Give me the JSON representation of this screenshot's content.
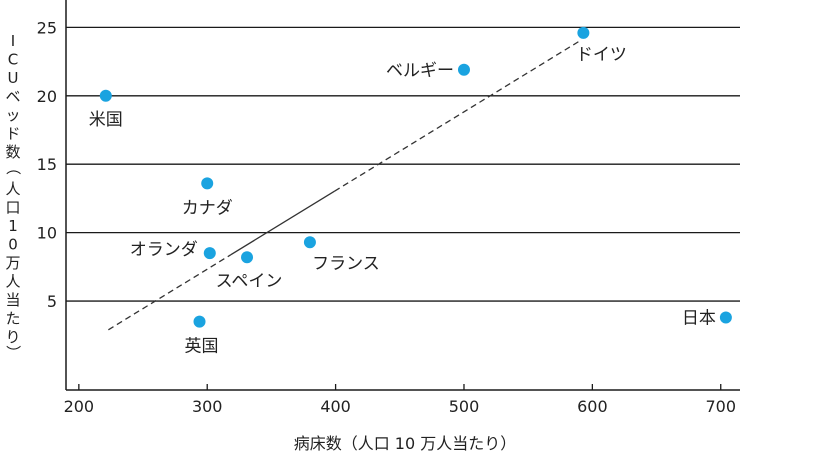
{
  "chart_data": {
    "type": "scatter",
    "xlabel": "病床数（人口 10 万人当たり）",
    "ylabel": "ICUベッド数（人口10万人当たり）",
    "xlim": [
      190,
      715
    ],
    "ylim": [
      -1.5,
      27
    ],
    "xticks": [
      "200",
      "300",
      "400",
      "500",
      "600",
      "700"
    ],
    "yticks": [
      "5",
      "10",
      "15",
      "20",
      "25"
    ],
    "grid": "horizontal",
    "point_color": "#1aa3e0",
    "points": [
      {
        "label": "ドイツ",
        "x": 593,
        "y": 24.6
      },
      {
        "label": "ベルギー",
        "x": 500,
        "y": 21.9
      },
      {
        "label": "米国",
        "x": 221,
        "y": 20.0
      },
      {
        "label": "カナダ",
        "x": 300,
        "y": 13.6
      },
      {
        "label": "フランス",
        "x": 380,
        "y": 9.3
      },
      {
        "label": "オランダ",
        "x": 302,
        "y": 8.5
      },
      {
        "label": "スペイン",
        "x": 331,
        "y": 8.2
      },
      {
        "label": "英国",
        "x": 294,
        "y": 3.5
      },
      {
        "label": "日本",
        "x": 704,
        "y": 3.8
      }
    ],
    "trendline": {
      "x": [
        223,
        590
      ],
      "y": [
        2.9,
        24.0
      ]
    }
  }
}
